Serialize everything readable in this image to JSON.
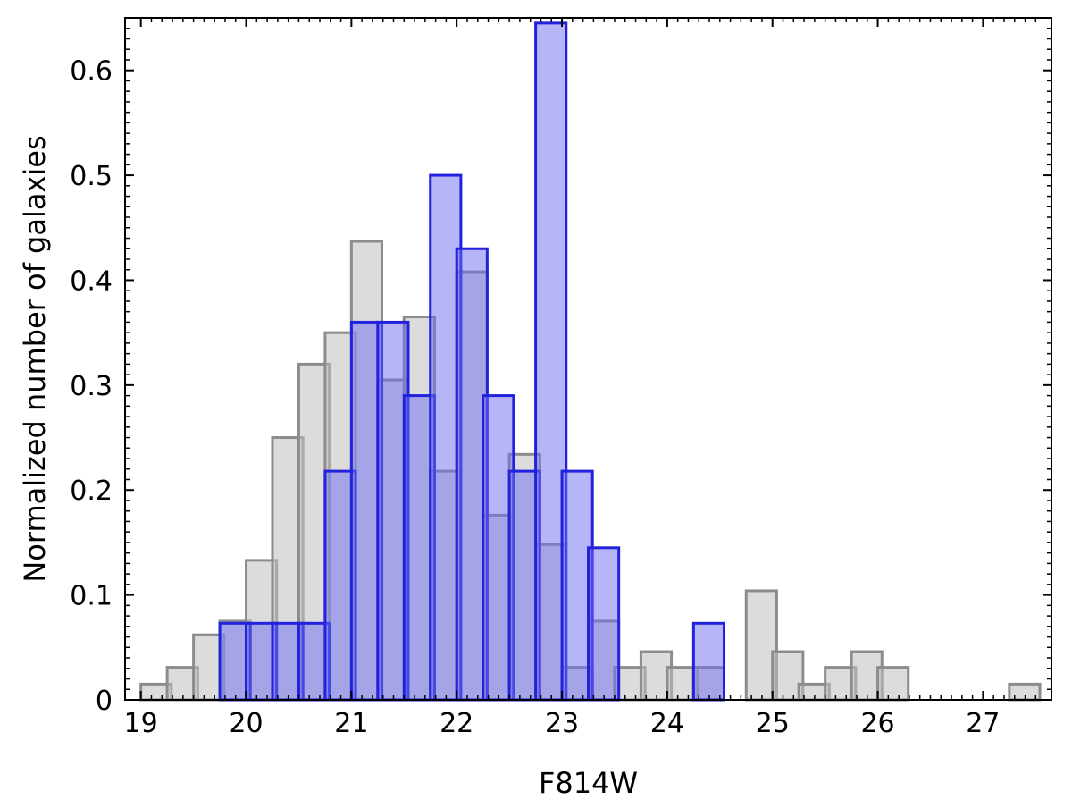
{
  "chart_data": {
    "type": "bar",
    "title": "",
    "xlabel": "F814W",
    "ylabel": "Normalized number of galaxies",
    "xlim": [
      18.85,
      27.65
    ],
    "ylim": [
      0,
      0.65
    ],
    "bin_width": 0.29,
    "x_ticks": [
      "19",
      "20",
      "21",
      "22",
      "23",
      "24",
      "25",
      "26",
      "27"
    ],
    "y_ticks": [
      "0",
      "0.1",
      "0.2",
      "0.3",
      "0.4",
      "0.5",
      "0.6"
    ],
    "grid": false,
    "legend": "none",
    "series": [
      {
        "color": "#c0c0c0",
        "edge_color": "#8c8c8c",
        "bins": [
          {
            "x": 19.0,
            "value": 0.015
          },
          {
            "x": 19.25,
            "value": 0.031
          },
          {
            "x": 19.5,
            "value": 0.062
          },
          {
            "x": 19.75,
            "value": 0.075
          },
          {
            "x": 20.0,
            "value": 0.133
          },
          {
            "x": 20.25,
            "value": 0.25
          },
          {
            "x": 20.5,
            "value": 0.32
          },
          {
            "x": 20.75,
            "value": 0.35
          },
          {
            "x": 21.0,
            "value": 0.437
          },
          {
            "x": 21.25,
            "value": 0.305
          },
          {
            "x": 21.5,
            "value": 0.365
          },
          {
            "x": 21.75,
            "value": 0.218
          },
          {
            "x": 22.0,
            "value": 0.408
          },
          {
            "x": 22.25,
            "value": 0.176
          },
          {
            "x": 22.5,
            "value": 0.234
          },
          {
            "x": 22.75,
            "value": 0.148
          },
          {
            "x": 23.0,
            "value": 0.031
          },
          {
            "x": 23.25,
            "value": 0.075
          },
          {
            "x": 23.5,
            "value": 0.031
          },
          {
            "x": 23.75,
            "value": 0.046
          },
          {
            "x": 24.0,
            "value": 0.031
          },
          {
            "x": 24.25,
            "value": 0.031
          },
          {
            "x": 24.75,
            "value": 0.104
          },
          {
            "x": 25.0,
            "value": 0.046
          },
          {
            "x": 25.25,
            "value": 0.015
          },
          {
            "x": 25.5,
            "value": 0.031
          },
          {
            "x": 25.75,
            "value": 0.046
          },
          {
            "x": 26.0,
            "value": 0.031
          },
          {
            "x": 27.25,
            "value": 0.015
          }
        ]
      },
      {
        "color": "#6c6cf0",
        "edge_color": "#2222dd",
        "bins": [
          {
            "x": 19.75,
            "value": 0.073
          },
          {
            "x": 20.0,
            "value": 0.073
          },
          {
            "x": 20.25,
            "value": 0.073
          },
          {
            "x": 20.5,
            "value": 0.073
          },
          {
            "x": 20.75,
            "value": 0.218
          },
          {
            "x": 21.0,
            "value": 0.36
          },
          {
            "x": 21.25,
            "value": 0.36
          },
          {
            "x": 21.5,
            "value": 0.29
          },
          {
            "x": 21.75,
            "value": 0.5
          },
          {
            "x": 22.0,
            "value": 0.43
          },
          {
            "x": 22.25,
            "value": 0.29
          },
          {
            "x": 22.5,
            "value": 0.218
          },
          {
            "x": 22.75,
            "value": 0.645
          },
          {
            "x": 23.0,
            "value": 0.218
          },
          {
            "x": 23.25,
            "value": 0.145
          },
          {
            "x": 24.25,
            "value": 0.073
          }
        ]
      }
    ]
  }
}
